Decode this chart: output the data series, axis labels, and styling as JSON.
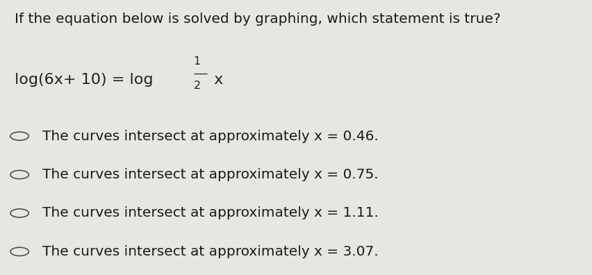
{
  "background_color": "#e8e6e1",
  "title_text": "If the equation below is solved by graphing, which statement is true?",
  "title_fontsize": 14.5,
  "title_color": "#1a1a1a",
  "equation_fontsize": 16,
  "equation_color": "#222222",
  "options_display": [
    "The curves intersect at approximately x = 0.46.",
    "The curves intersect at approximately x = 0.75.",
    "The curves intersect at approximately x = 1.11.",
    "The curves intersect at approximately x = 3.07."
  ],
  "options_fontsize": 14.5,
  "options_color": "#1a1a1a",
  "circle_color": "#444444",
  "figsize": [
    8.53,
    3.96
  ],
  "dpi": 100
}
